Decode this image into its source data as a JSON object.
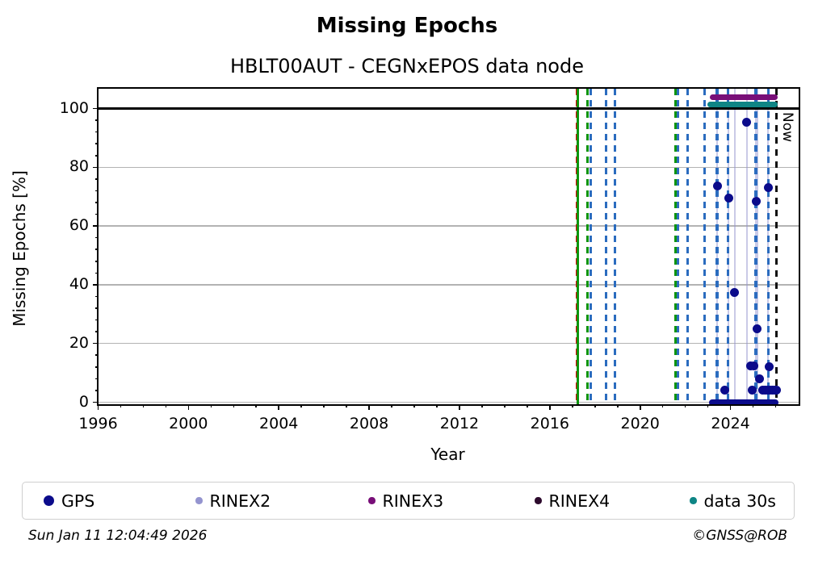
{
  "title": "Missing Epochs",
  "subtitle": "HBLT00AUT - CEGNxEPOS data node",
  "now_label": "Now",
  "footer": {
    "timestamp": "Sun Jan 11 12:04:49 2026",
    "credit": "©GNSS@ROB"
  },
  "legend": {
    "items": [
      {
        "label": "GPS",
        "color": "#0b0b8b",
        "marker": "legend-marker-dot",
        "size": 13
      },
      {
        "label": "RINEX2",
        "color": "#9494cf",
        "marker": "legend-marker-dot",
        "size": 8.5
      },
      {
        "label": "RINEX3",
        "color": "#780e78",
        "marker": "legend-marker-dot",
        "size": 8.5
      },
      {
        "label": "RINEX4",
        "color": "#2d0a2d",
        "marker": "legend-marker-dot",
        "size": 8.5
      },
      {
        "label": "data 30s",
        "color": "#0e8585",
        "marker": "legend-marker-dot",
        "size": 8.5
      }
    ]
  },
  "chart_data": {
    "type": "scatter",
    "title": "Missing Epochs",
    "subtitle": "HBLT00AUT - CEGNxEPOS data node",
    "xlabel": "Year",
    "ylabel": "Missing Epochs [%]",
    "xlim": [
      1996,
      2027
    ],
    "ylim": [
      -0.6,
      106.7
    ],
    "x_major_ticks": [
      1996,
      2000,
      2004,
      2008,
      2012,
      2016,
      2020,
      2024
    ],
    "x_minor_step": 1,
    "y_major_ticks": [
      0,
      20,
      40,
      60,
      80,
      100
    ],
    "y_minor_step": 4,
    "grid": "horizontal-major",
    "reference_hline": 100,
    "now_line": {
      "x": 2026.03,
      "color": "#111111",
      "label": "Now"
    },
    "series": [
      {
        "name": "GPS",
        "color": "#0b0b8b",
        "points": [
          [
            2023.41,
            73.5
          ],
          [
            2023.73,
            4.2
          ],
          [
            2023.92,
            69.6
          ],
          [
            2024.18,
            37.4
          ],
          [
            2024.72,
            95.3
          ],
          [
            2024.88,
            12.4
          ],
          [
            2024.97,
            4.2
          ],
          [
            2025.04,
            12.4
          ],
          [
            2025.14,
            68.5
          ],
          [
            2025.19,
            24.9
          ],
          [
            2025.28,
            7.9
          ],
          [
            2025.42,
            4.2
          ],
          [
            2025.52,
            4.2
          ],
          [
            2025.63,
            4.2
          ],
          [
            2025.67,
            73.1
          ],
          [
            2025.71,
            12.1
          ],
          [
            2025.74,
            4.2
          ],
          [
            2025.85,
            4.2
          ],
          [
            2025.95,
            4.2
          ],
          [
            2026.04,
            4.2
          ]
        ],
        "zero_run": {
          "from": 2023.04,
          "to": 2026.11,
          "value": 0
        }
      },
      {
        "name": "RINEX2",
        "color": "#9494cf",
        "stem_lines": [
          2023.41,
          2023.92,
          2024.18,
          2024.72,
          2025.14,
          2025.19,
          2025.67
        ]
      },
      {
        "name": "RINEX3",
        "color": "#780e78",
        "bar": {
          "from": 2023.07,
          "to": 2026.08,
          "level": 103.9
        }
      },
      {
        "name": "RINEX4",
        "color": "#2d0a2d"
      },
      {
        "name": "data 30s",
        "color": "#0e8585",
        "bar": {
          "from": 2022.99,
          "to": 2026.08,
          "level": 101.3
        }
      }
    ],
    "vlines": [
      {
        "x": 2017.19,
        "style": "dashed",
        "color": "#dd0000",
        "width": 2
      },
      {
        "x": 2017.23,
        "style": "solid",
        "color": "#0c940c",
        "width": 2.5
      },
      {
        "x": 2017.68,
        "style": "dashed",
        "color": "#0c940c",
        "width": 3
      },
      {
        "x": 2017.81,
        "style": "dashed",
        "color": "#2b6cbf",
        "width": 3.5
      },
      {
        "x": 2018.49,
        "style": "dashed",
        "color": "#2b6cbf",
        "width": 3.5
      },
      {
        "x": 2018.88,
        "style": "dashed",
        "color": "#2b6cbf",
        "width": 3.5
      },
      {
        "x": 2021.58,
        "style": "dashed",
        "color": "#0c940c",
        "width": 3
      },
      {
        "x": 2021.67,
        "style": "dashed",
        "color": "#2b6cbf",
        "width": 3.5
      },
      {
        "x": 2022.11,
        "style": "dashed",
        "color": "#2b6cbf",
        "width": 3.5
      },
      {
        "x": 2022.86,
        "style": "dashed",
        "color": "#2b6cbf",
        "width": 3.5
      },
      {
        "x": 2023.41,
        "style": "dashed",
        "color": "#2b6cbf",
        "width": 3.5
      },
      {
        "x": 2023.89,
        "style": "dashed",
        "color": "#2b6cbf",
        "width": 3.5
      },
      {
        "x": 2025.13,
        "style": "dashed",
        "color": "#2b6cbf",
        "width": 3.5
      },
      {
        "x": 2025.68,
        "style": "dashed",
        "color": "#2b6cbf",
        "width": 3.5
      }
    ],
    "colors": {
      "grid": "#b3b3b3",
      "frame": "#000000",
      "gps_point": "#0b0b8b",
      "stem": "#9696d0"
    }
  }
}
